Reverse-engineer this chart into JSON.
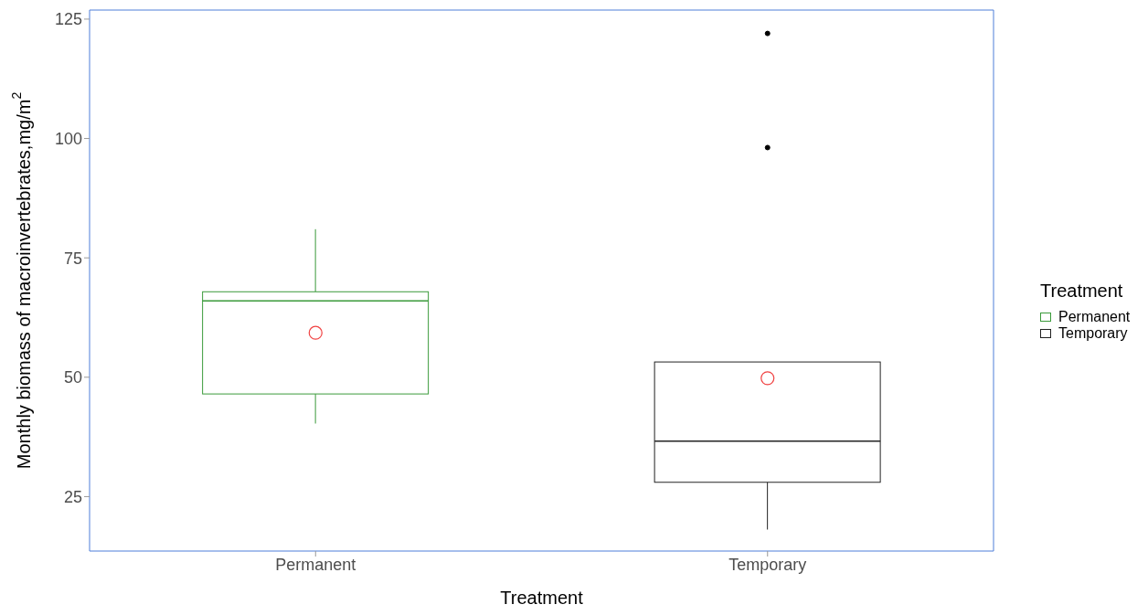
{
  "chart_data": {
    "type": "box",
    "xlabel": "Treatment",
    "ylabel": "Monthly biomass of macroinvertebrates,mg/m$^{2}$",
    "legend_title": "Treatment",
    "legend": "right",
    "grid": false,
    "categories": [
      "Permanent",
      "Temporary"
    ],
    "series": [
      {
        "name": "Permanent",
        "color": "#3a9a3a",
        "boxes": [
          {
            "low": 40.3,
            "q1": 46.5,
            "median": 66,
            "q3": 67.9,
            "high": 81,
            "mean": 59.3
          },
          null
        ]
      },
      {
        "name": "Temporary",
        "color": "#222222",
        "boxes": [
          null,
          {
            "low": 18.1,
            "q1": 28,
            "median": 36.6,
            "q3": 53.2,
            "high": 53.2,
            "mean": 49.8,
            "outliers": [
              98.1,
              122
            ]
          }
        ]
      }
    ],
    "ylim": [
      13.6,
      126.9
    ],
    "yticks": [
      25,
      50,
      75,
      100,
      125
    ]
  }
}
